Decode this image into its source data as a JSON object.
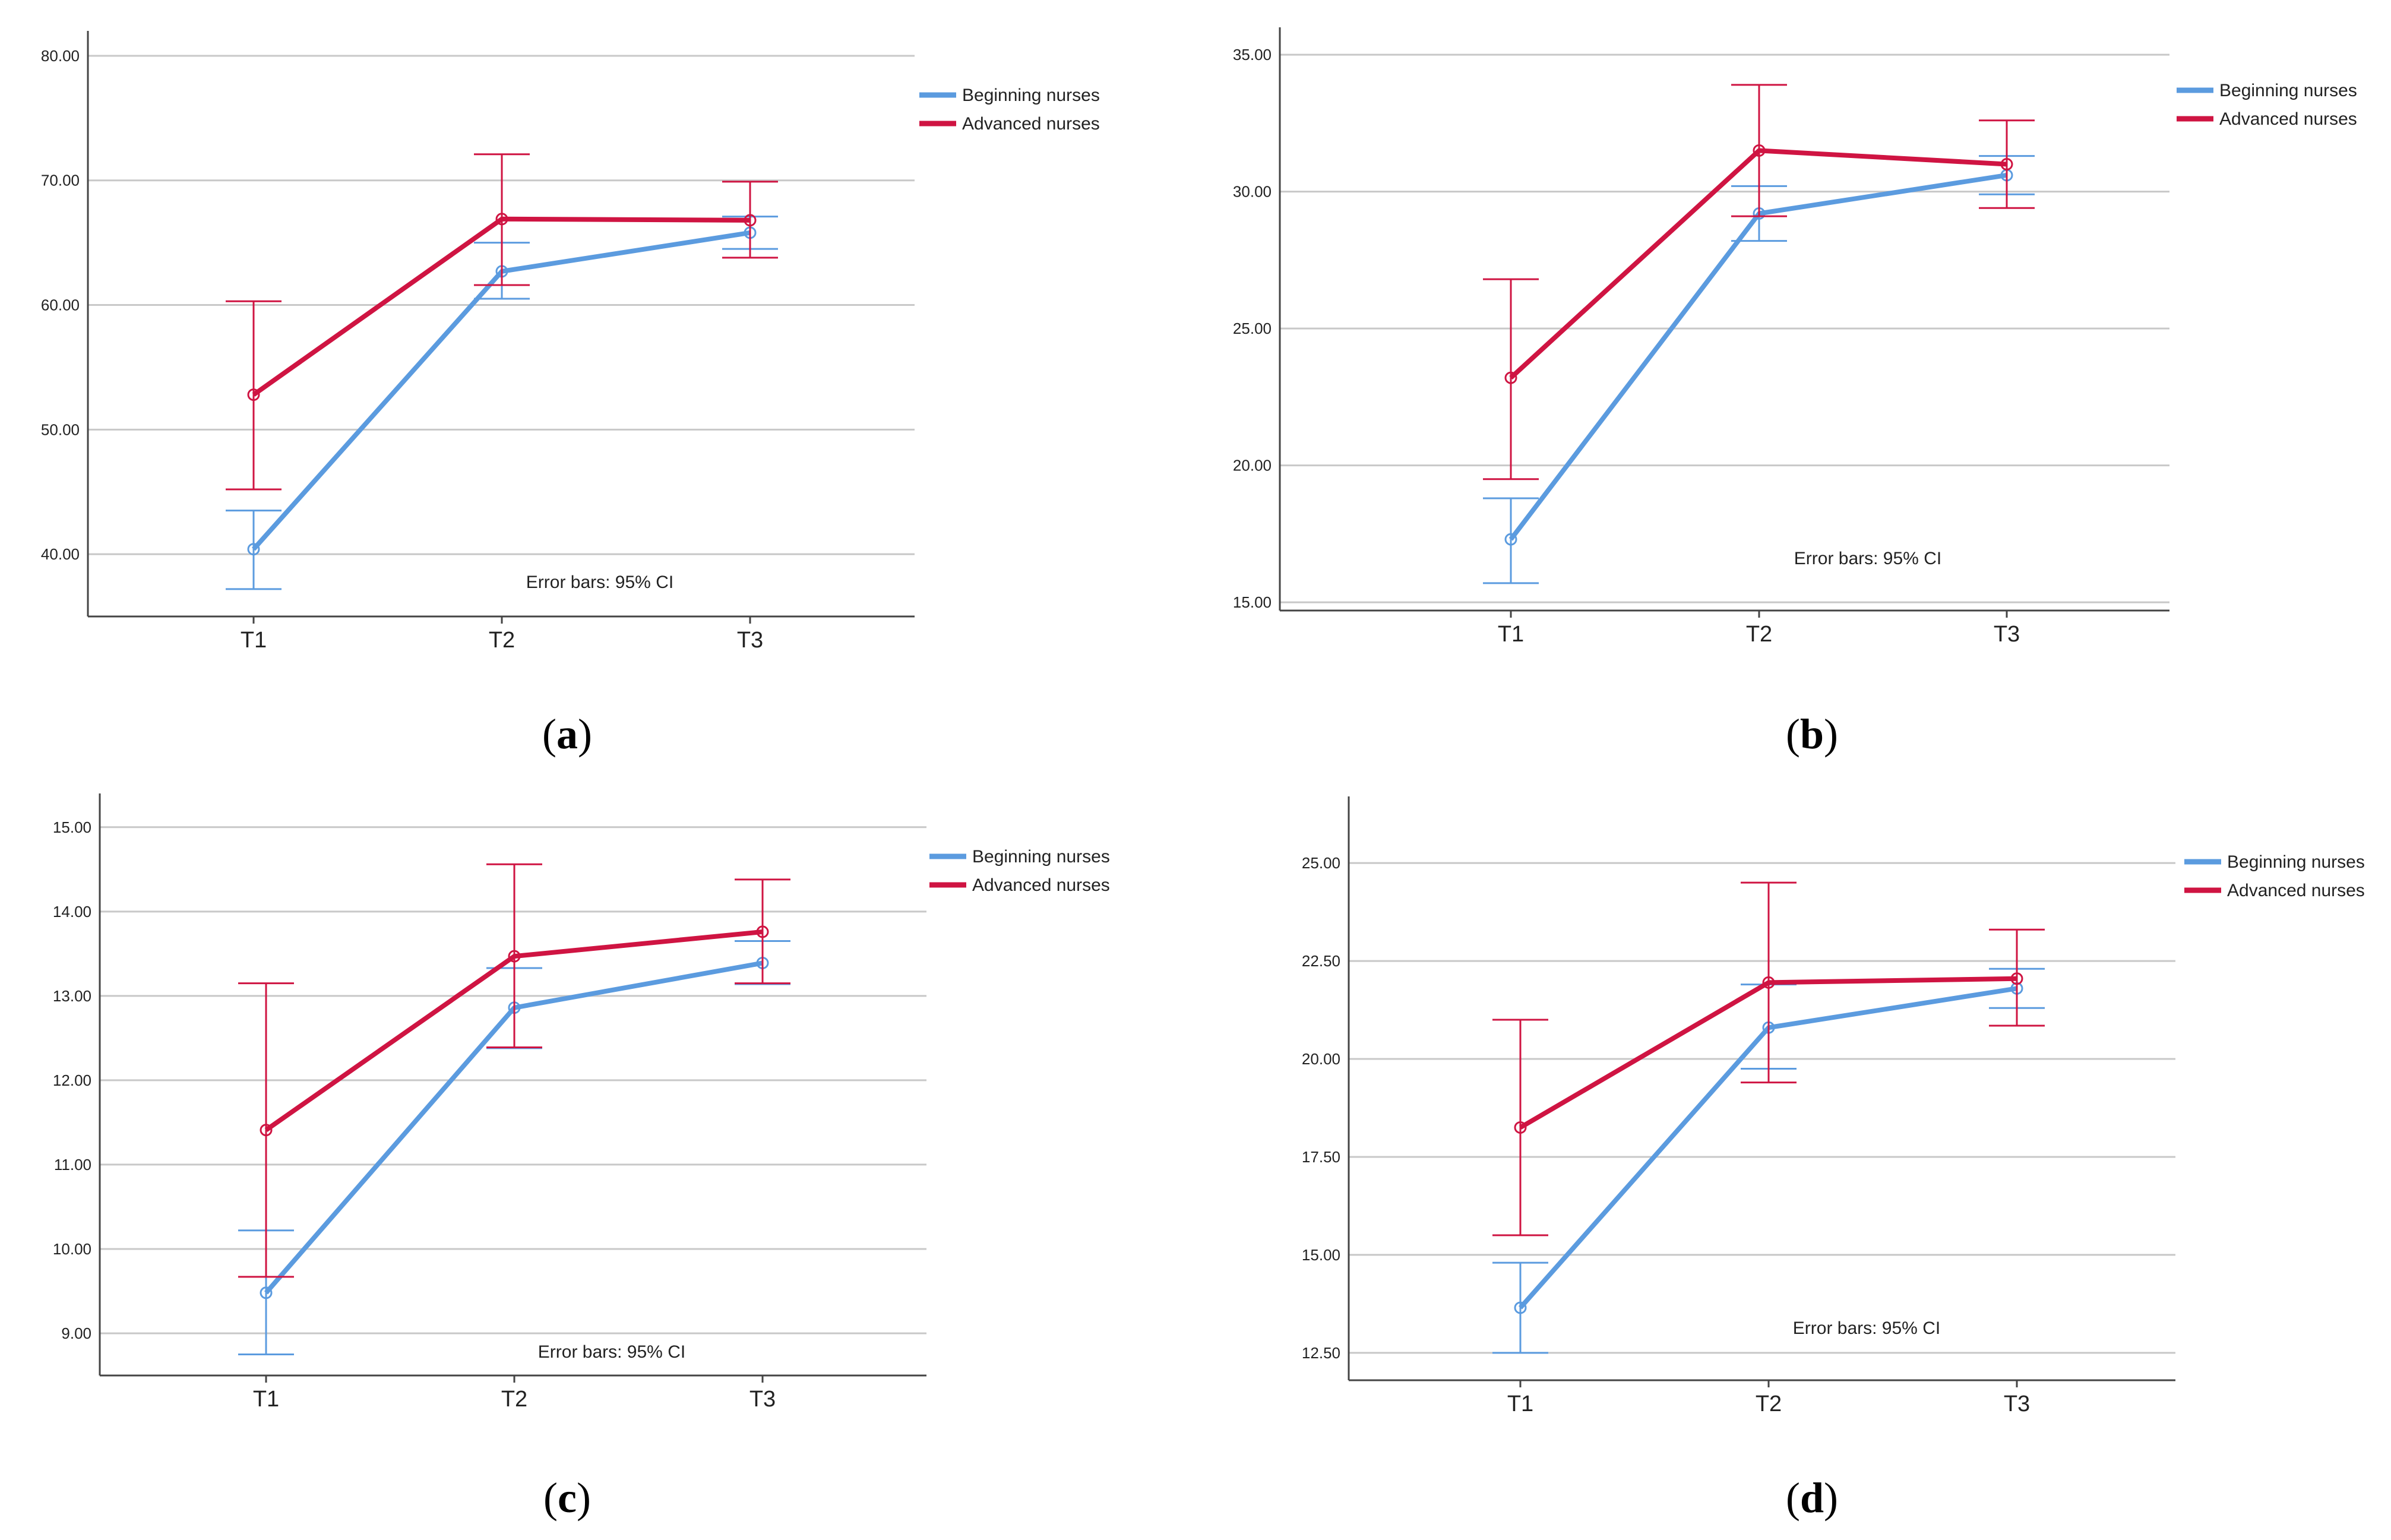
{
  "legend_labels": [
    "Beginning nurses",
    "Advanced nurses"
  ],
  "colors": {
    "beginning": "#5b9bdf",
    "advanced": "#cf1442",
    "grid": "#c8c8c8",
    "axis": "#444444"
  },
  "chart_data": [
    {
      "type": "line",
      "caption": "a",
      "categories": [
        "T1",
        "T2",
        "T3"
      ],
      "yticks": [
        "40.00",
        "50.00",
        "60.00",
        "70.00",
        "80.00"
      ],
      "ylim": [
        35,
        82
      ],
      "annotation": "Error bars: 95% CI",
      "legend_position": "top-right",
      "series": [
        {
          "name": "Beginning nurses",
          "values": [
            40.4,
            62.7,
            65.8
          ],
          "ci_low": [
            37.2,
            60.5,
            64.5
          ],
          "ci_high": [
            43.5,
            65.0,
            67.1
          ]
        },
        {
          "name": "Advanced nurses",
          "values": [
            52.8,
            66.9,
            66.8
          ],
          "ci_low": [
            45.2,
            61.6,
            63.8
          ],
          "ci_high": [
            60.3,
            72.1,
            69.9
          ]
        }
      ]
    },
    {
      "type": "line",
      "caption": "b",
      "categories": [
        "T1",
        "T2",
        "T3"
      ],
      "yticks": [
        "15.00",
        "20.00",
        "25.00",
        "30.00",
        "35.00"
      ],
      "ylim": [
        14.7,
        36
      ],
      "annotation": "Error bars: 95% CI",
      "legend_position": "top-right",
      "series": [
        {
          "name": "Beginning nurses",
          "values": [
            17.3,
            29.2,
            30.6
          ],
          "ci_low": [
            15.7,
            28.2,
            29.9
          ],
          "ci_high": [
            18.8,
            30.2,
            31.3
          ]
        },
        {
          "name": "Advanced nurses",
          "values": [
            23.2,
            31.5,
            31.0
          ],
          "ci_low": [
            19.5,
            29.1,
            29.4
          ],
          "ci_high": [
            26.8,
            33.9,
            32.6
          ]
        }
      ]
    },
    {
      "type": "line",
      "caption": "c",
      "categories": [
        "T1",
        "T2",
        "T3"
      ],
      "yticks": [
        "9.00",
        "10.00",
        "11.00",
        "12.00",
        "13.00",
        "14.00",
        "15.00"
      ],
      "ylim": [
        8.5,
        15.4
      ],
      "annotation": "Error bars: 95% CI",
      "legend_position": "top-right",
      "series": [
        {
          "name": "Beginning nurses",
          "values": [
            9.48,
            12.86,
            13.39
          ],
          "ci_low": [
            8.75,
            12.38,
            13.14
          ],
          "ci_high": [
            10.22,
            13.33,
            13.65
          ]
        },
        {
          "name": "Advanced nurses",
          "values": [
            11.41,
            13.47,
            13.76
          ],
          "ci_low": [
            9.67,
            12.39,
            13.15
          ],
          "ci_high": [
            13.15,
            14.56,
            14.38
          ]
        }
      ]
    },
    {
      "type": "line",
      "caption": "d",
      "categories": [
        "T1",
        "T2",
        "T3"
      ],
      "yticks": [
        "12.50",
        "15.00",
        "17.50",
        "20.00",
        "22.50",
        "25.00"
      ],
      "ylim": [
        11.8,
        26.7
      ],
      "annotation": "Error bars: 95% CI",
      "legend_position": "top-right",
      "series": [
        {
          "name": "Beginning nurses",
          "values": [
            13.65,
            20.8,
            21.8
          ],
          "ci_low": [
            12.5,
            19.75,
            21.3
          ],
          "ci_high": [
            14.8,
            21.9,
            22.3
          ]
        },
        {
          "name": "Advanced nurses",
          "values": [
            18.25,
            21.95,
            22.05
          ],
          "ci_low": [
            15.5,
            19.4,
            20.85
          ],
          "ci_high": [
            21.0,
            24.5,
            23.3
          ]
        }
      ]
    }
  ]
}
